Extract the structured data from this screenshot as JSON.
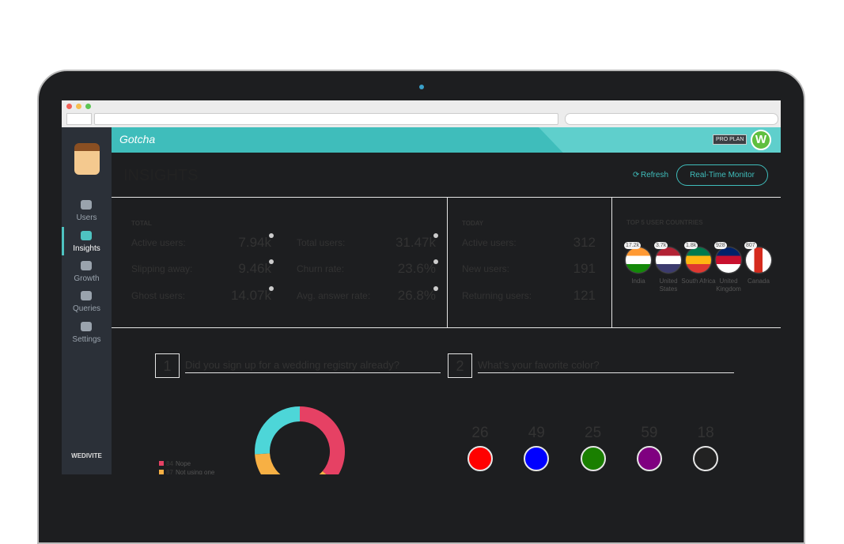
{
  "app": {
    "brand": "Gotcha",
    "plan": "PRO PLAN",
    "avatar": "W"
  },
  "sidebar": {
    "nav": [
      "Users",
      "Insights",
      "Growth",
      "Queries",
      "Settings"
    ],
    "account": "WEDIVITE"
  },
  "header": {
    "title": "INSIGHTS",
    "refresh": "Refresh",
    "monitor": "Real-Time Monitor"
  },
  "total": {
    "heading": "TOTAL",
    "stats": [
      {
        "label": "Active users:",
        "value": "7.94k"
      },
      {
        "label": "Slipping away:",
        "value": "9.46k"
      },
      {
        "label": "Ghost users:",
        "value": "14.07k"
      },
      {
        "label": "Total users:",
        "value": "31.47k"
      },
      {
        "label": "Churn rate:",
        "value": "23.6%"
      },
      {
        "label": "Avg. answer rate:",
        "value": "26.8%"
      }
    ]
  },
  "today": {
    "heading": "TODAY",
    "stats": [
      {
        "label": "Active users:",
        "value": 312
      },
      {
        "label": "New users:",
        "value": 191
      },
      {
        "label": "Returning users:",
        "value": 121
      }
    ]
  },
  "countries": {
    "heading": "TOP 5 USER COUNTRIES",
    "items": [
      {
        "count": "17.2k",
        "name": "India"
      },
      {
        "count": "3.7k",
        "name": "United States"
      },
      {
        "count": "1.8k",
        "name": "South Africa"
      },
      {
        "count": 928,
        "name": "United Kingdom"
      },
      {
        "count": 807,
        "name": "Canada"
      }
    ]
  },
  "questions": [
    {
      "number": 1,
      "text": "Did you sign up for a wedding registry already?",
      "chart": {
        "type": "pie",
        "segments": [
          {
            "label": "Nope",
            "value": 84,
            "color": "#e64164"
          },
          {
            "label": "Not using one",
            "value": 87,
            "color": "#f7b044"
          },
          {
            "label": null,
            "value": 60,
            "color": "#4dd6d8"
          }
        ]
      }
    },
    {
      "number": 2,
      "text": "What’s your favorite color?",
      "options": [
        {
          "value": 26,
          "color": "#ff0000"
        },
        {
          "value": 49,
          "color": "#0000ff"
        },
        {
          "value": 25,
          "color": "#1a7f00"
        },
        {
          "value": 59,
          "color": "#7f0080"
        },
        {
          "value": 18,
          "color": "#222222"
        }
      ]
    }
  ]
}
